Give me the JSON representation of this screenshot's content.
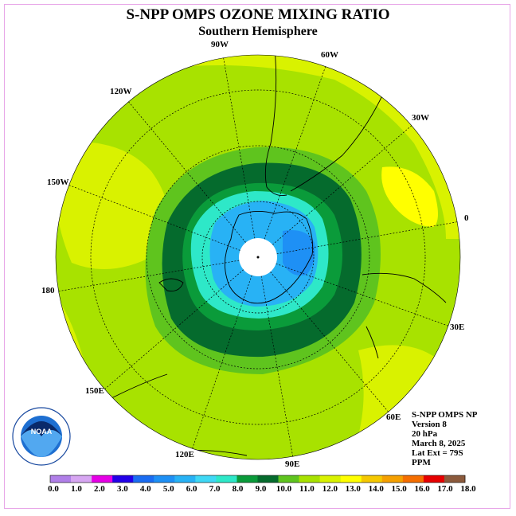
{
  "title": "S-NPP OMPS OZONE MIXING RATIO",
  "subtitle": "Southern Hemisphere",
  "longitude_labels": [
    "90W",
    "60W",
    "120W",
    "30W",
    "150W",
    "0",
    "180",
    "30E",
    "150E",
    "60E",
    "120E",
    "90E"
  ],
  "info": {
    "instrument": "S-NPP OMPS NP",
    "version": "Version 8",
    "level": "20 hPa",
    "date": "March 8, 2025",
    "lat_ext": "Lat Ext = 79S",
    "units": "PPM"
  },
  "logo": {
    "name": "NOAA",
    "text": "NOAA"
  },
  "colorbar": {
    "labels": [
      "0.0",
      "1.0",
      "2.0",
      "3.0",
      "4.0",
      "5.0",
      "6.0",
      "7.0",
      "8.0",
      "9.0",
      "10.0",
      "11.0",
      "12.0",
      "13.0",
      "14.0",
      "15.0",
      "16.0",
      "17.0",
      "18.0"
    ],
    "colors": [
      "#b07fe8",
      "#d7a6f2",
      "#e600e6",
      "#2200e8",
      "#1a6cf2",
      "#1e90f5",
      "#28b2f5",
      "#3fd8f5",
      "#2ee8c8",
      "#0a9b3a",
      "#056b2d",
      "#5fc41e",
      "#a8e200",
      "#d9f200",
      "#ffff00",
      "#f5c800",
      "#f5a000",
      "#f56e00",
      "#e60000",
      "#8c5a3c"
    ]
  },
  "chart_data": {
    "type": "heatmap",
    "projection": "south-polar-stereographic",
    "variable": "ozone mixing ratio",
    "units": "PPM",
    "level": "20 hPa",
    "date": "March 8, 2025",
    "scale_min": 0.0,
    "scale_max": 18.0,
    "regions": [
      {
        "region": "outer midlatitudes",
        "value_range": [
          11.0,
          12.0
        ]
      },
      {
        "region": "South Atlantic / Indian Ocean maximum",
        "value_range": [
          12.0,
          13.0
        ]
      },
      {
        "region": "ring around polar vortex",
        "value_range": [
          9.0,
          10.0
        ]
      },
      {
        "region": "vortex edge",
        "value_range": [
          7.0,
          9.0
        ]
      },
      {
        "region": "polar vortex core over Antarctica",
        "value_range": [
          5.0,
          7.0
        ]
      },
      {
        "region": "pole (no data, lat > 79S)",
        "value_range": null
      }
    ]
  }
}
